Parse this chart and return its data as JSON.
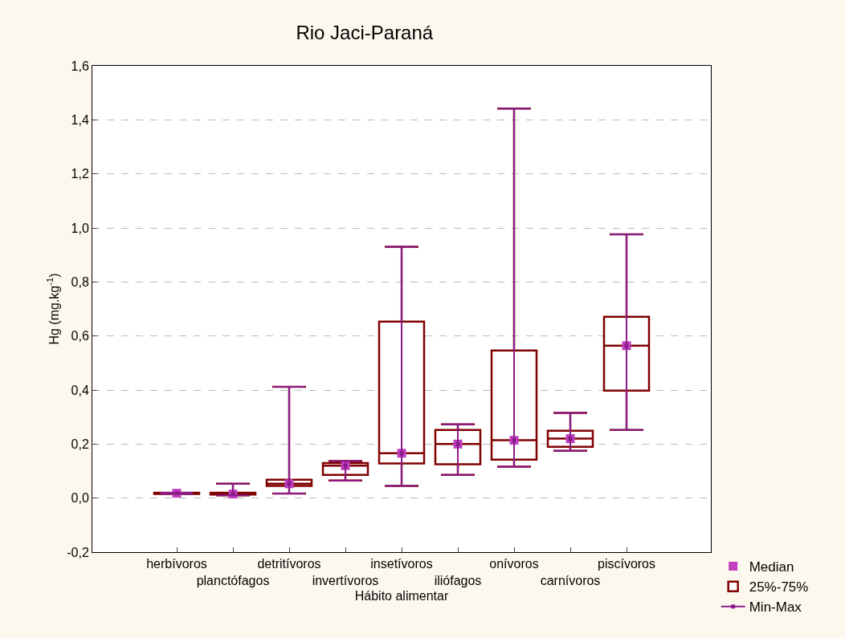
{
  "chart_data": {
    "type": "box",
    "title": "Rio Jaci-Paraná",
    "xlabel": "Hábito alimentar",
    "ylabel": "Hg (mg.kg$^{-1}$)",
    "categories": [
      "herbívoros",
      "planctófagos",
      "detritívoros",
      "invertívoros",
      "insetívoros",
      "iliófagos",
      "onívoros",
      "carnívoros",
      "piscívoros"
    ],
    "series": [
      {
        "name": "Median",
        "type": "scatter",
        "color": "#c040c0",
        "marker": "square",
        "values": [
          0.018,
          0.015,
          0.053,
          0.12,
          0.166,
          0.2,
          0.214,
          0.22,
          0.564
        ]
      },
      {
        "name": "25%-75%",
        "type": "box",
        "color": "#800000",
        "boxes": [
          {
            "low": 0.015,
            "q1": 0.015,
            "median": 0.018,
            "q3": 0.02,
            "high": 0.02
          },
          {
            "low": 0.01,
            "q1": 0.013,
            "median": 0.015,
            "q3": 0.02,
            "high": 0.053
          },
          {
            "low": 0.017,
            "q1": 0.045,
            "median": 0.053,
            "q3": 0.068,
            "high": 0.412
          },
          {
            "low": 0.065,
            "q1": 0.086,
            "median": 0.12,
            "q3": 0.13,
            "high": 0.137
          },
          {
            "low": 0.045,
            "q1": 0.128,
            "median": 0.166,
            "q3": 0.653,
            "high": 0.93
          },
          {
            "low": 0.086,
            "q1": 0.125,
            "median": 0.2,
            "q3": 0.252,
            "high": 0.273
          },
          {
            "low": 0.116,
            "q1": 0.142,
            "median": 0.214,
            "q3": 0.546,
            "high": 1.442
          },
          {
            "low": 0.175,
            "q1": 0.19,
            "median": 0.22,
            "q3": 0.249,
            "high": 0.315
          },
          {
            "low": 0.252,
            "q1": 0.398,
            "median": 0.564,
            "q3": 0.671,
            "high": 0.976
          }
        ]
      },
      {
        "name": "Min-Max",
        "type": "scatter",
        "color": "#8b1a8b",
        "marker": "square",
        "values": [
          0.018,
          0.015,
          0.053,
          0.12,
          0.166,
          0.2,
          0.214,
          0.22,
          0.564
        ],
        "errors": [
          [
            0.015,
            0.02
          ],
          [
            0.01,
            0.053
          ],
          [
            0.017,
            0.412
          ],
          [
            0.065,
            0.137
          ],
          [
            0.045,
            0.93
          ],
          [
            0.086,
            0.273
          ],
          [
            0.116,
            1.442
          ],
          [
            0.175,
            0.315
          ],
          [
            0.252,
            0.976
          ]
        ]
      }
    ],
    "ylim": [
      -0.2,
      1.6
    ],
    "yticks": [
      {
        "value": -0.2,
        "label": "-0,2"
      },
      {
        "value": 0,
        "label": "0,0"
      },
      {
        "value": 0.2,
        "label": "0,2"
      },
      {
        "value": 0.4,
        "label": "0,4"
      },
      {
        "value": 0.6,
        "label": "0,6"
      },
      {
        "value": 0.8,
        "label": "0,8"
      },
      {
        "value": 1.0,
        "label": "1,0"
      },
      {
        "value": 1.2,
        "label": "1,2"
      },
      {
        "value": 1.4,
        "label": "1,4"
      },
      {
        "value": 1.6,
        "label": "1,6"
      }
    ],
    "grid": "y",
    "legend": "bottom right"
  }
}
